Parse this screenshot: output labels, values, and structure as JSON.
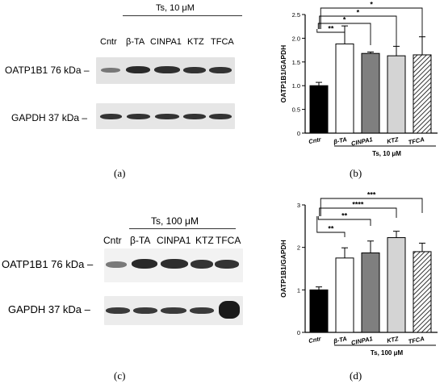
{
  "panel_a": {
    "treatment": "Ts, 10 μM",
    "lanes": [
      "Cntr",
      "β-TA",
      "CINPA1",
      "KTZ",
      "TFCA"
    ],
    "row1_label": "OATP1B1 76 kDa –",
    "row2_label": "GAPDH  37 kDa –",
    "caption": "(a)"
  },
  "panel_c": {
    "treatment": "Ts, 100 μM",
    "lanes": [
      "Cntr",
      "β-TA",
      "CINPA1",
      "KTZ",
      "TFCA"
    ],
    "row1_label": "OATP1B1 76 kDa –",
    "row2_label": "GAPDH  37 kDa –",
    "caption": "(c)"
  },
  "captions": {
    "b": "(b)",
    "d": "(d)"
  },
  "chart_data": [
    {
      "type": "bar",
      "categories": [
        "Cntr",
        "β-TA",
        "CINPA1",
        "KTZ",
        "TFCA"
      ],
      "values": [
        1.0,
        1.88,
        1.68,
        1.63,
        1.65
      ],
      "errors": [
        0.07,
        0.38,
        0.03,
        0.2,
        0.38
      ],
      "ylabel": "OATP1B1/GAPDH",
      "xlabel": "Ts, 10 μM",
      "ylim": [
        0,
        2.5
      ],
      "yticks": [
        0,
        0.5,
        1.0,
        1.5,
        2.0,
        2.5
      ],
      "significance": [
        "**",
        "*",
        "*",
        "*"
      ],
      "bar_styles": [
        "black",
        "white",
        "gray",
        "lightgray",
        "hatch"
      ]
    },
    {
      "type": "bar",
      "categories": [
        "Cntr",
        "β-TA",
        "CINPA1",
        "KTZ",
        "TFCA"
      ],
      "values": [
        1.0,
        1.75,
        1.87,
        2.23,
        1.9
      ],
      "errors": [
        0.07,
        0.24,
        0.28,
        0.15,
        0.2
      ],
      "ylabel": "OATP1B1/GAPDH",
      "xlabel": "Ts, 100 μM",
      "ylim": [
        0,
        3
      ],
      "yticks": [
        0,
        1,
        2,
        3
      ],
      "significance": [
        "**",
        "**",
        "****",
        "***"
      ],
      "bar_styles": [
        "black",
        "white",
        "gray",
        "lightgray",
        "hatch"
      ]
    }
  ]
}
